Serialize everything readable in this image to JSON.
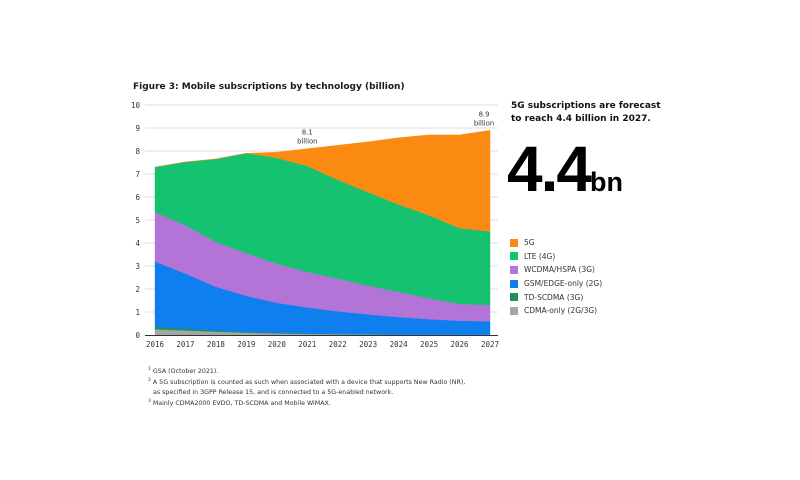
{
  "chart_data": {
    "type": "area",
    "stacked": true,
    "title": "Figure 3: Mobile subscriptions by technology (billion)",
    "xlabel": "",
    "ylabel": "",
    "x": [
      2016,
      2017,
      2018,
      2019,
      2020,
      2021,
      2022,
      2023,
      2024,
      2025,
      2026,
      2027
    ],
    "ylim": [
      0,
      10
    ],
    "yticks": [
      0,
      1,
      2,
      3,
      4,
      5,
      6,
      7,
      8,
      9,
      10
    ],
    "grid": "horizontal",
    "legend_position": "right",
    "series": [
      {
        "name": "CDMA-only (2G/3G)",
        "color": "#a6a6a6",
        "values": [
          0.25,
          0.2,
          0.15,
          0.1,
          0.07,
          0.05,
          0.04,
          0.03,
          0.02,
          0.02,
          0.01,
          0.01
        ]
      },
      {
        "name": "TD-SCDMA (3G)",
        "color": "#1e8f5a",
        "values": [
          0.1,
          0.07,
          0.05,
          0.03,
          0.02,
          0.01,
          0.01,
          0.0,
          0.0,
          0.0,
          0.0,
          0.0
        ]
      },
      {
        "name": "GSM/EDGE-only (2G)",
        "color": "#0f7ff0",
        "values": [
          2.85,
          2.4,
          1.9,
          1.57,
          1.31,
          1.14,
          0.98,
          0.87,
          0.76,
          0.67,
          0.61,
          0.59
        ]
      },
      {
        "name": "WCDMA/HSPA (3G)",
        "color": "#b274d6",
        "values": [
          2.15,
          2.1,
          1.95,
          1.85,
          1.7,
          1.55,
          1.42,
          1.25,
          1.1,
          0.91,
          0.73,
          0.7
        ]
      },
      {
        "name": "LTE (4G)",
        "color": "#15c26f",
        "values": [
          1.95,
          2.75,
          3.6,
          4.35,
          4.6,
          4.6,
          4.3,
          4.05,
          3.8,
          3.6,
          3.3,
          3.2
        ]
      },
      {
        "name": "5G",
        "color": "#fb8a12",
        "values": [
          0.0,
          0.0,
          0.0,
          0.0,
          0.25,
          0.75,
          1.5,
          2.2,
          2.9,
          3.5,
          4.05,
          4.4
        ]
      }
    ],
    "annotations": [
      {
        "x": 2021,
        "lines": [
          "8.1",
          "billion"
        ]
      },
      {
        "x": 2027,
        "lines": [
          "8.9",
          "billion"
        ]
      }
    ],
    "legend": [
      "5G",
      "LTE (4G)",
      "WCDMA/HSPA (3G)",
      "GSM/EDGE-only (2G)",
      "TD-SCDMA (3G)",
      "CDMA-only (2G/3G)"
    ]
  },
  "callout": {
    "line1": "5G subscriptions are forecast",
    "line2": "to reach 4.4 billion in 2027.",
    "big_number": "4.4",
    "big_unit": "bn"
  },
  "footnotes": [
    {
      "mark": "1",
      "text": "GSA (October 2021)."
    },
    {
      "mark": "2",
      "text": "A 5G subscription is counted as such when associated with a device that supports New Radio (NR),"
    },
    {
      "mark": "",
      "text": "as specified in 3GPP Release 15, and is connected to a 5G-enabled network."
    },
    {
      "mark": "3",
      "text": "Mainly CDMA2000 EVDO, TD-SCDMA and Mobile WiMAX."
    }
  ]
}
